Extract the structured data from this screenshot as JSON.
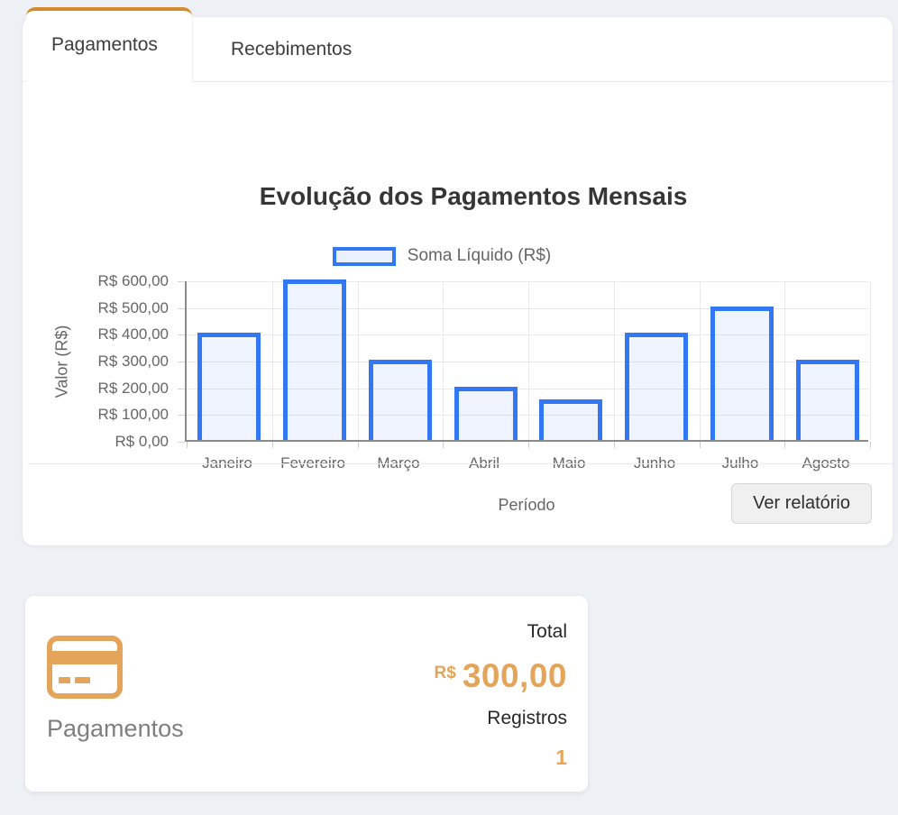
{
  "colors": {
    "page_bg": "#edf0f4",
    "accent_orange": "#d18b2e",
    "warm_orange": "#e4a55b",
    "bar_border": "#3277f3",
    "bar_fill": "rgba(50,119,243,0.08)"
  },
  "tabs": [
    {
      "label": "Pagamentos",
      "active": true
    },
    {
      "label": "Recebimentos",
      "active": false
    }
  ],
  "chart_data": {
    "type": "bar",
    "title": "Evolução dos Pagamentos Mensais",
    "categories": [
      "Janeiro",
      "Fevereiro",
      "Março",
      "Abril",
      "Maio",
      "Junho",
      "Julho",
      "Agosto"
    ],
    "series": [
      {
        "name": "Soma Líquido (R$)",
        "values": [
          400,
          600,
          300,
          200,
          150,
          400,
          500,
          300
        ]
      }
    ],
    "xlabel": "Período",
    "ylabel": "Valor (R$)",
    "ylim": [
      0,
      600
    ],
    "ytick_step": 100,
    "ytick_labels": [
      "R$ 600,00",
      "R$ 500,00",
      "R$ 400,00",
      "R$ 300,00",
      "R$ 200,00",
      "R$ 100,00",
      "R$ 0,00"
    ],
    "grid": true,
    "legend_position": "top"
  },
  "footer": {
    "button_label": "Ver relatório"
  },
  "summary_card": {
    "icon": "credit-card",
    "label": "Pagamentos",
    "total_label": "Total",
    "currency_symbol": "R$",
    "total_value": "300,00",
    "registros_label": "Registros",
    "registros_value": "1"
  }
}
